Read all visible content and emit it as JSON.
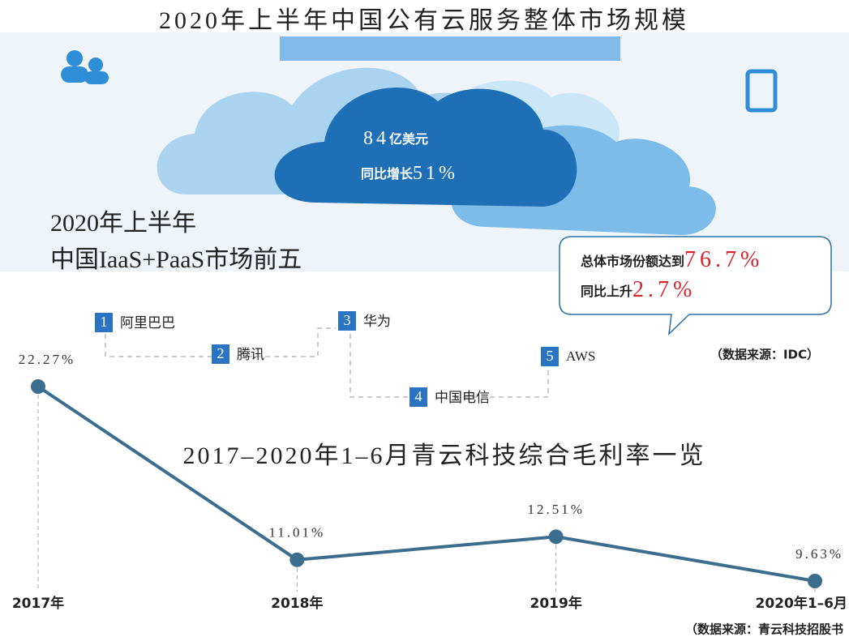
{
  "header": {
    "title": "2020年上半年中国公有云服务整体市场规模"
  },
  "cloud": {
    "amount": "84",
    "amount_unit": "亿美元",
    "growth_label": "同比增长",
    "growth": "51%"
  },
  "ranking": {
    "title_line1": "2020年上半年",
    "title_line2": "中国IaaS+PaaS市场前五",
    "items": [
      {
        "rank": 1,
        "name": "阿里巴巴"
      },
      {
        "rank": 2,
        "name": "腾讯"
      },
      {
        "rank": 3,
        "name": "华为"
      },
      {
        "rank": 4,
        "name": "中国电信"
      },
      {
        "rank": 5,
        "name": "AWS"
      }
    ]
  },
  "bubble": {
    "share_label": "总体市场份额达到",
    "share": "76.7%",
    "rise_label": "同比上升",
    "rise": "2.7%"
  },
  "source_idc": "（数据来源：IDC）",
  "chart_data": {
    "type": "line",
    "title": "2017–2020年1–6月青云科技综合毛利率一览",
    "categories": [
      "2017年",
      "2018年",
      "2019年",
      "2020年1–6月"
    ],
    "series": [
      {
        "color": "#3b6e8e",
        "values": [
          22.27,
          11.01,
          12.51,
          9.63
        ],
        "value_labels": [
          "22.27%",
          "11.01%",
          "12.51%",
          "9.63%"
        ]
      }
    ]
  },
  "source_chart": "（数据来源：青云科技招股书"
}
